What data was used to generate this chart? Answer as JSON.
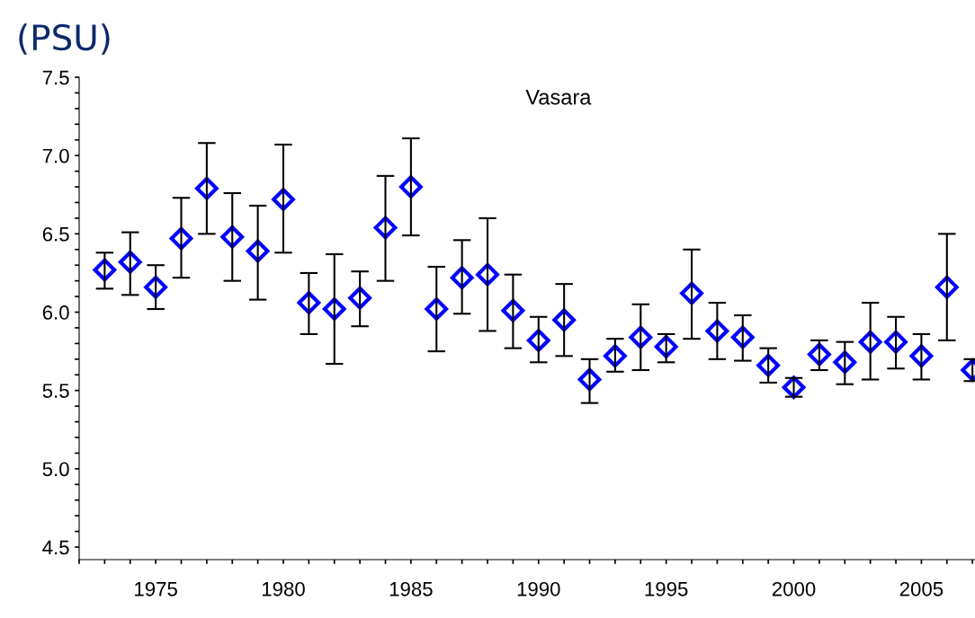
{
  "chart_data": {
    "type": "scatter",
    "title": "Vasara",
    "ylabel": "(PSU)",
    "x": [
      1973,
      1974,
      1975,
      1976,
      1977,
      1978,
      1979,
      1980,
      1981,
      1982,
      1983,
      1984,
      1985,
      1986,
      1987,
      1988,
      1989,
      1990,
      1991,
      1992,
      1993,
      1994,
      1995,
      1996,
      1997,
      1998,
      1999,
      2000,
      2001,
      2002,
      2003,
      2004,
      2005,
      2006,
      2007
    ],
    "series": [
      {
        "color": "#0000ff",
        "values": [
          6.27,
          6.32,
          6.16,
          6.47,
          6.79,
          6.48,
          6.39,
          6.72,
          6.06,
          6.02,
          6.09,
          6.54,
          6.8,
          6.02,
          6.22,
          6.24,
          6.01,
          5.82,
          5.95,
          5.57,
          5.72,
          5.84,
          5.78,
          6.12,
          5.88,
          5.84,
          5.66,
          5.52,
          5.73,
          5.68,
          5.81,
          5.81,
          5.72,
          6.16,
          5.63
        ],
        "errors": [
          [
            6.15,
            6.38
          ],
          [
            6.11,
            6.51
          ],
          [
            6.02,
            6.3
          ],
          [
            6.22,
            6.73
          ],
          [
            6.5,
            7.08
          ],
          [
            6.2,
            6.76
          ],
          [
            6.08,
            6.68
          ],
          [
            6.38,
            7.07
          ],
          [
            5.86,
            6.25
          ],
          [
            5.67,
            6.37
          ],
          [
            5.91,
            6.26
          ],
          [
            6.2,
            6.87
          ],
          [
            6.49,
            7.11
          ],
          [
            5.75,
            6.29
          ],
          [
            5.99,
            6.46
          ],
          [
            5.88,
            6.6
          ],
          [
            5.77,
            6.24
          ],
          [
            5.68,
            5.97
          ],
          [
            5.72,
            6.18
          ],
          [
            5.42,
            5.7
          ],
          [
            5.62,
            5.83
          ],
          [
            5.63,
            6.05
          ],
          [
            5.68,
            5.86
          ],
          [
            5.83,
            6.4
          ],
          [
            5.7,
            6.06
          ],
          [
            5.69,
            5.98
          ],
          [
            5.55,
            5.77
          ],
          [
            5.46,
            5.58
          ],
          [
            5.63,
            5.82
          ],
          [
            5.54,
            5.81
          ],
          [
            5.57,
            6.06
          ],
          [
            5.64,
            5.97
          ],
          [
            5.57,
            5.86
          ],
          [
            5.82,
            6.5
          ],
          [
            5.56,
            5.7
          ]
        ]
      }
    ],
    "marker": "diamond",
    "grid": false,
    "legend": false,
    "xlim": [
      1972,
      2007.1
    ],
    "xticks": [
      {
        "value": 1972,
        "label": null
      },
      {
        "value": 1973,
        "label": null
      },
      {
        "value": 1974,
        "label": null
      },
      1975,
      {
        "value": 1976,
        "label": null
      },
      {
        "value": 1977,
        "label": null
      },
      {
        "value": 1978,
        "label": null
      },
      {
        "value": 1979,
        "label": null
      },
      1980,
      {
        "value": 1981,
        "label": null
      },
      {
        "value": 1982,
        "label": null
      },
      {
        "value": 1983,
        "label": null
      },
      {
        "value": 1984,
        "label": null
      },
      1985,
      {
        "value": 1986,
        "label": null
      },
      {
        "value": 1987,
        "label": null
      },
      {
        "value": 1988,
        "label": null
      },
      {
        "value": 1989,
        "label": null
      },
      1990,
      {
        "value": 1991,
        "label": null
      },
      {
        "value": 1992,
        "label": null
      },
      {
        "value": 1993,
        "label": null
      },
      {
        "value": 1994,
        "label": null
      },
      1995,
      {
        "value": 1996,
        "label": null
      },
      {
        "value": 1997,
        "label": null
      },
      {
        "value": 1998,
        "label": null
      },
      {
        "value": 1999,
        "label": null
      },
      2000,
      {
        "value": 2001,
        "label": null
      },
      {
        "value": 2002,
        "label": null
      },
      {
        "value": 2003,
        "label": null
      },
      {
        "value": 2004,
        "label": null
      },
      2005,
      {
        "value": 2006,
        "label": null
      },
      {
        "value": 2007,
        "label": null
      }
    ],
    "ylim": [
      4.42,
      7.5
    ],
    "yticks": [
      {
        "value": 4.5,
        "label": "4.5"
      },
      {
        "value": 4.6,
        "label": null
      },
      {
        "value": 4.7,
        "label": null
      },
      {
        "value": 4.8,
        "label": null
      },
      {
        "value": 4.9,
        "label": null
      },
      {
        "value": 5.0,
        "label": "5.0"
      },
      {
        "value": 5.1,
        "label": null
      },
      {
        "value": 5.2,
        "label": null
      },
      {
        "value": 5.3,
        "label": null
      },
      {
        "value": 5.4,
        "label": null
      },
      {
        "value": 5.5,
        "label": "5.5"
      },
      {
        "value": 5.6,
        "label": null
      },
      {
        "value": 5.7,
        "label": null
      },
      {
        "value": 5.8,
        "label": null
      },
      {
        "value": 5.9,
        "label": null
      },
      {
        "value": 6.0,
        "label": "6.0"
      },
      {
        "value": 6.1,
        "label": null
      },
      {
        "value": 6.2,
        "label": null
      },
      {
        "value": 6.3,
        "label": null
      },
      {
        "value": 6.4,
        "label": null
      },
      {
        "value": 6.5,
        "label": "6.5"
      },
      {
        "value": 6.6,
        "label": null
      },
      {
        "value": 6.7,
        "label": null
      },
      {
        "value": 6.8,
        "label": null
      },
      {
        "value": 6.9,
        "label": null
      },
      {
        "value": 7.0,
        "label": "7.0"
      },
      {
        "value": 7.1,
        "label": null
      },
      {
        "value": 7.2,
        "label": null
      },
      {
        "value": 7.3,
        "label": null
      },
      {
        "value": 7.4,
        "label": null
      },
      {
        "value": 7.5,
        "label": "7.5"
      }
    ]
  }
}
